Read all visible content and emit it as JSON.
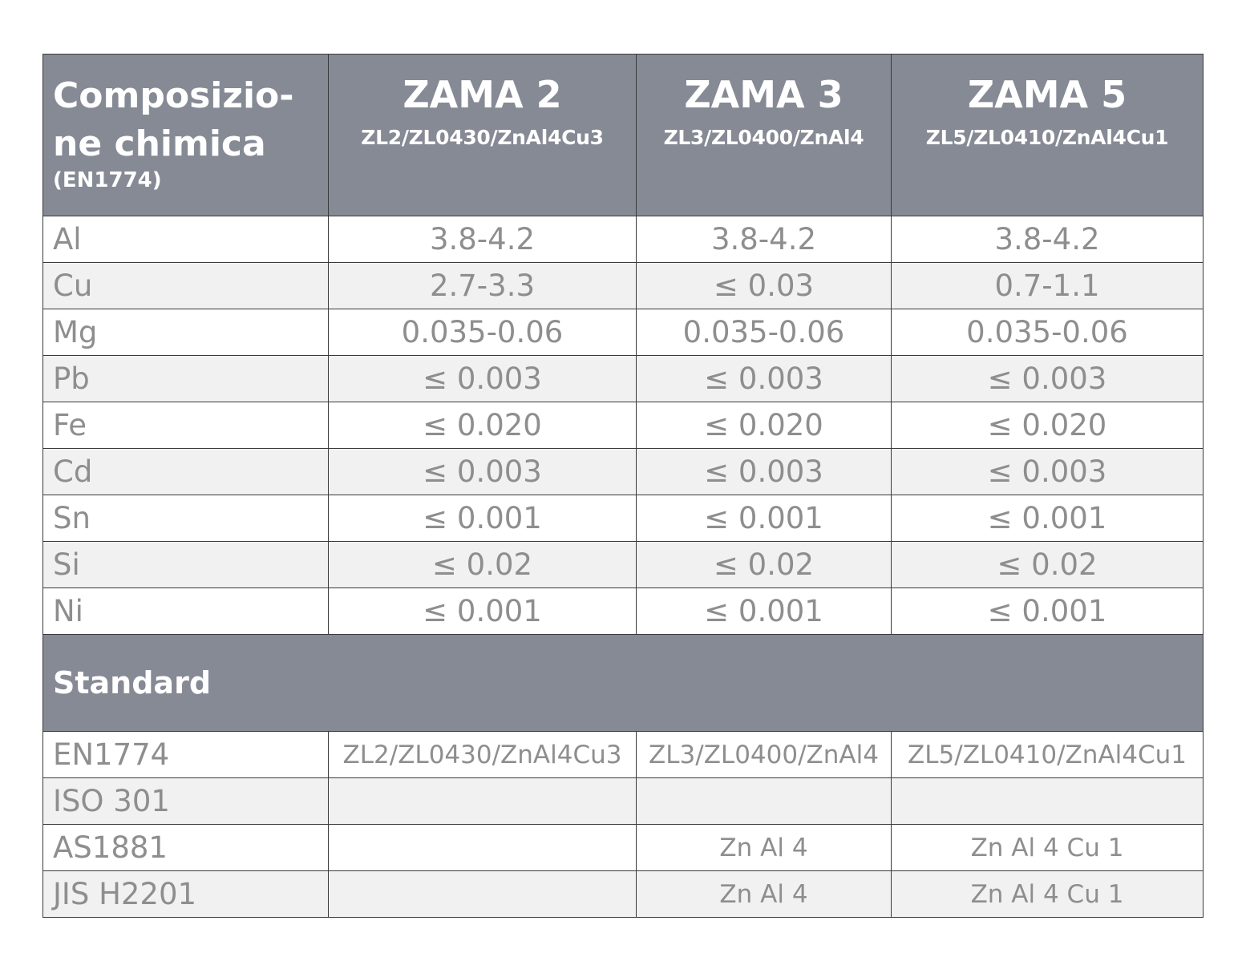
{
  "header": {
    "title_line1": "Composizio-",
    "title_line2": "ne chimica",
    "subtitle": "(EN1774)",
    "alloys": [
      {
        "name": "ZAMA 2",
        "codes": "ZL2/ZL0430/ZnAl4Cu3"
      },
      {
        "name": "ZAMA 3",
        "codes": "ZL3/ZL0400/ZnAl4"
      },
      {
        "name": "ZAMA 5",
        "codes": "ZL5/ZL0410/ZnAl4Cu1"
      }
    ]
  },
  "composition_rows": [
    {
      "element": "Al",
      "values": [
        "3.8-4.2",
        "3.8-4.2",
        "3.8-4.2"
      ]
    },
    {
      "element": "Cu",
      "values": [
        "2.7-3.3",
        "≤ 0.03",
        "0.7-1.1"
      ]
    },
    {
      "element": "Mg",
      "values": [
        "0.035-0.06",
        "0.035-0.06",
        "0.035-0.06"
      ]
    },
    {
      "element": "Pb",
      "values": [
        "≤ 0.003",
        "≤ 0.003",
        "≤ 0.003"
      ]
    },
    {
      "element": "Fe",
      "values": [
        "≤ 0.020",
        "≤ 0.020",
        "≤ 0.020"
      ]
    },
    {
      "element": "Cd",
      "values": [
        "≤ 0.003",
        "≤ 0.003",
        "≤ 0.003"
      ]
    },
    {
      "element": "Sn",
      "values": [
        "≤ 0.001",
        "≤ 0.001",
        "≤ 0.001"
      ]
    },
    {
      "element": "Si",
      "values": [
        "≤ 0.02",
        "≤ 0.02",
        "≤ 0.02"
      ]
    },
    {
      "element": "Ni",
      "values": [
        "≤ 0.001",
        "≤ 0.001",
        "≤ 0.001"
      ]
    }
  ],
  "standards_section": {
    "title": "Standard"
  },
  "standard_rows": [
    {
      "standard": "EN1774",
      "values": [
        "ZL2/ZL0430/ZnAl4Cu3",
        "ZL3/ZL0400/ZnAl4",
        "ZL5/ZL0410/ZnAl4Cu1"
      ]
    },
    {
      "standard": "ISO 301",
      "values": [
        "",
        "",
        ""
      ]
    },
    {
      "standard": "AS1881",
      "values": [
        "",
        "Zn Al 4",
        "Zn Al 4 Cu 1"
      ]
    },
    {
      "standard": "JIS H2201",
      "values": [
        "",
        "Zn Al 4",
        "Zn Al 4 Cu 1"
      ]
    }
  ]
}
